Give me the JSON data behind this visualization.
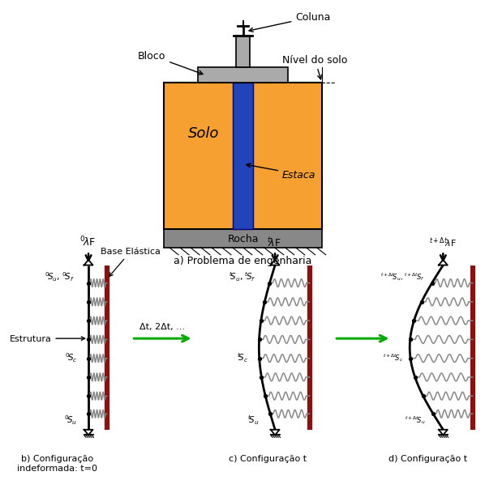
{
  "bg_color": "#ffffff",
  "orange_color": "#F5A030",
  "blue_color": "#2244BB",
  "gray_block": "#AAAAAA",
  "gray_rock": "#888888",
  "text_solo": "Solo",
  "text_estaca": "Estaca",
  "text_rocha": "Rocha",
  "text_bloco": "Bloco",
  "text_coluna": "Coluna",
  "text_nivel": "Nível do solo",
  "text_prob": "a) Problema de engenharia",
  "text_b": "b) Configuração\nindeformada: t=0",
  "text_c": "c) Configuração t",
  "text_d": "d) Configuração t",
  "label_estrutura": "Estrutura",
  "label_base": "Base Elástica",
  "label_delta": "Δt, 2Δt, ..."
}
